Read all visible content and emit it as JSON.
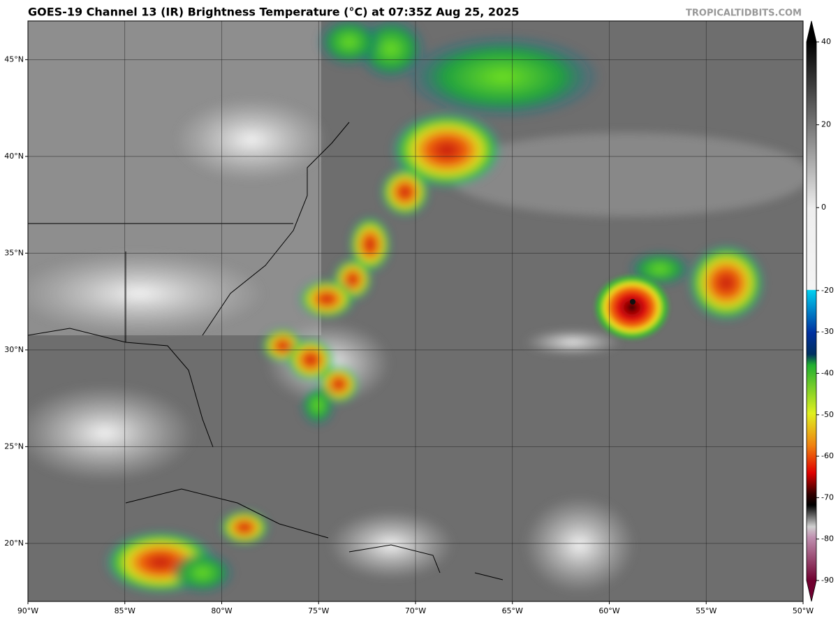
{
  "header": {
    "title": "GOES-19 Channel 13 (IR) Brightness Temperature (°C) at 07:35Z Aug 25, 2025",
    "credit": "TROPICALTIDBITS.COM"
  },
  "map": {
    "xlim": [
      -90,
      -50
    ],
    "ylim": [
      17,
      47
    ],
    "xticks": [
      {
        "value": -90,
        "label": "90°W"
      },
      {
        "value": -85,
        "label": "85°W"
      },
      {
        "value": -80,
        "label": "80°W"
      },
      {
        "value": -75,
        "label": "75°W"
      },
      {
        "value": -70,
        "label": "70°W"
      },
      {
        "value": -65,
        "label": "65°W"
      },
      {
        "value": -60,
        "label": "60°W"
      },
      {
        "value": -55,
        "label": "55°W"
      },
      {
        "value": -50,
        "label": "50°W"
      }
    ],
    "yticks": [
      {
        "value": 20,
        "label": "20°N"
      },
      {
        "value": 25,
        "label": "25°N"
      },
      {
        "value": 30,
        "label": "30°N"
      },
      {
        "value": 35,
        "label": "35°N"
      },
      {
        "value": 40,
        "label": "40°N"
      },
      {
        "value": 45,
        "label": "45°N"
      }
    ],
    "grid": true
  },
  "colorbar": {
    "lim": [
      -90,
      40
    ],
    "ticks": [
      40,
      20,
      0,
      -20,
      -30,
      -40,
      -50,
      -60,
      -70,
      -80,
      -90
    ]
  }
}
